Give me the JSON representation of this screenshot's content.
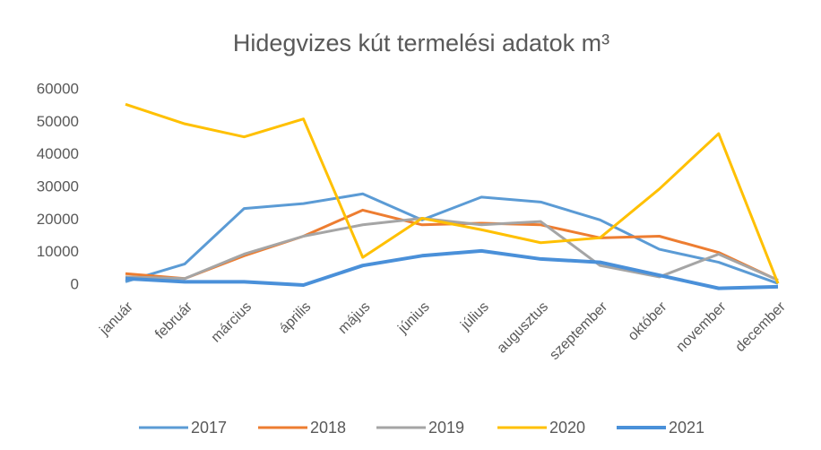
{
  "chart_data": {
    "type": "line",
    "title": "Hidegvizes kút termelési adatok m³",
    "categories": [
      "január",
      "február",
      "március",
      "április",
      "május",
      "június",
      "július",
      "augusztus",
      "szeptember",
      "október",
      "november",
      "december"
    ],
    "series": [
      {
        "name": "2017",
        "color": "#5b9bd5",
        "values": [
          1000,
          6500,
          23500,
          25000,
          28000,
          20000,
          27000,
          25500,
          20000,
          11000,
          7000,
          500
        ]
      },
      {
        "name": "2018",
        "color": "#ed7d31",
        "values": [
          3500,
          2000,
          9000,
          15000,
          23000,
          18500,
          19000,
          18500,
          14500,
          15000,
          10000,
          1500
        ]
      },
      {
        "name": "2019",
        "color": "#a5a5a5",
        "values": [
          2500,
          2000,
          9500,
          15000,
          18500,
          20500,
          18500,
          19500,
          6000,
          2500,
          9500,
          1500
        ]
      },
      {
        "name": "2020",
        "color": "#ffc000",
        "values": [
          55500,
          49500,
          45500,
          51000,
          8500,
          20500,
          17000,
          13000,
          14500,
          29500,
          46500,
          500
        ]
      },
      {
        "name": "2021",
        "color": "#4a90d9",
        "values": [
          2000,
          1000,
          1000,
          0,
          6000,
          9000,
          10500,
          8000,
          7000,
          3000,
          -1000,
          -500
        ]
      }
    ],
    "ylim": [
      0,
      60000
    ],
    "yticks": [
      0,
      10000,
      20000,
      30000,
      40000,
      50000,
      60000
    ],
    "grid": false,
    "legend": "bottom"
  }
}
